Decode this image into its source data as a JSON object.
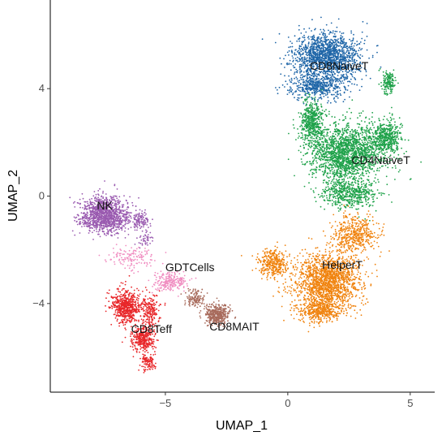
{
  "chart_data": {
    "type": "scatter",
    "title": "",
    "xlabel": "UMAP_1",
    "ylabel": "UMAP_2",
    "xlim": [
      -9.7,
      6.0
    ],
    "ylim": [
      -7.3,
      7.3
    ],
    "x_ticks": [
      -5,
      0,
      5
    ],
    "y_ticks": [
      -4,
      0,
      4
    ],
    "x_tick_labels": [
      "−5",
      "0",
      "5"
    ],
    "y_tick_labels": [
      "−4",
      "0",
      "4"
    ],
    "grid": false,
    "legend": "none",
    "clusters": [
      {
        "name": "CD8NaiveT",
        "color": "#1F66A8",
        "label_pos": [
          0.9,
          4.7
        ],
        "blobs": [
          {
            "cx": 1.6,
            "cy": 5.2,
            "sx": 1.2,
            "sy": 0.8,
            "n": 1500
          },
          {
            "cx": 1.2,
            "cy": 4.1,
            "sx": 1.0,
            "sy": 0.45,
            "n": 500
          }
        ]
      },
      {
        "name": "CD4NaiveT",
        "color": "#1FA24A",
        "label_pos": [
          2.6,
          1.2
        ],
        "blobs": [
          {
            "cx": 2.4,
            "cy": 1.6,
            "sx": 1.4,
            "sy": 0.95,
            "n": 1800
          },
          {
            "cx": 1.0,
            "cy": 2.8,
            "sx": 0.45,
            "sy": 0.75,
            "n": 450
          },
          {
            "cx": 4.0,
            "cy": 2.2,
            "sx": 0.55,
            "sy": 0.55,
            "n": 450
          },
          {
            "cx": 4.1,
            "cy": 4.2,
            "sx": 0.25,
            "sy": 0.4,
            "n": 150
          },
          {
            "cx": 2.5,
            "cy": 0.1,
            "sx": 1.1,
            "sy": 0.5,
            "n": 500
          }
        ]
      },
      {
        "name": "HelperT",
        "color": "#F0830E",
        "label_pos": [
          1.4,
          -2.7
        ],
        "blobs": [
          {
            "cx": 1.6,
            "cy": -3.2,
            "sx": 1.2,
            "sy": 1.0,
            "n": 1700
          },
          {
            "cx": 2.7,
            "cy": -1.4,
            "sx": 0.8,
            "sy": 0.6,
            "n": 450
          },
          {
            "cx": -0.6,
            "cy": -2.5,
            "sx": 0.55,
            "sy": 0.45,
            "n": 350
          },
          {
            "cx": 1.3,
            "cy": -4.3,
            "sx": 0.8,
            "sy": 0.35,
            "n": 350
          }
        ]
      },
      {
        "name": "NK",
        "color": "#9A5BB0",
        "label_pos": [
          -7.8,
          -0.5
        ],
        "blobs": [
          {
            "cx": -7.5,
            "cy": -0.7,
            "sx": 0.9,
            "sy": 0.6,
            "n": 1200
          },
          {
            "cx": -6.0,
            "cy": -0.9,
            "sx": 0.35,
            "sy": 0.3,
            "n": 120
          },
          {
            "cx": -5.8,
            "cy": -1.6,
            "sx": 0.3,
            "sy": 0.25,
            "n": 40
          }
        ]
      },
      {
        "name": "GDTCells",
        "color": "#F08CC0",
        "label_pos": [
          -5.0,
          -2.8
        ],
        "blobs": [
          {
            "cx": -4.8,
            "cy": -3.2,
            "sx": 0.6,
            "sy": 0.3,
            "n": 220
          },
          {
            "cx": -6.4,
            "cy": -2.3,
            "sx": 0.9,
            "sy": 0.4,
            "n": 130
          }
        ]
      },
      {
        "name": "CD8MAIT",
        "color": "#A86B5C",
        "label_pos": [
          -3.2,
          -5.0
        ],
        "blobs": [
          {
            "cx": -2.9,
            "cy": -4.4,
            "sx": 0.45,
            "sy": 0.35,
            "n": 420
          },
          {
            "cx": -3.8,
            "cy": -3.8,
            "sx": 0.35,
            "sy": 0.3,
            "n": 120
          }
        ]
      },
      {
        "name": "CD8Teff",
        "color": "#E8272A",
        "label_pos": [
          -6.4,
          -5.1
        ],
        "blobs": [
          {
            "cx": -6.6,
            "cy": -4.1,
            "sx": 0.55,
            "sy": 0.55,
            "n": 600
          },
          {
            "cx": -5.9,
            "cy": -5.3,
            "sx": 0.4,
            "sy": 0.45,
            "n": 350
          },
          {
            "cx": -5.7,
            "cy": -6.2,
            "sx": 0.25,
            "sy": 0.3,
            "n": 100
          },
          {
            "cx": -5.6,
            "cy": -4.3,
            "sx": 0.35,
            "sy": 0.5,
            "n": 200
          }
        ]
      }
    ]
  }
}
